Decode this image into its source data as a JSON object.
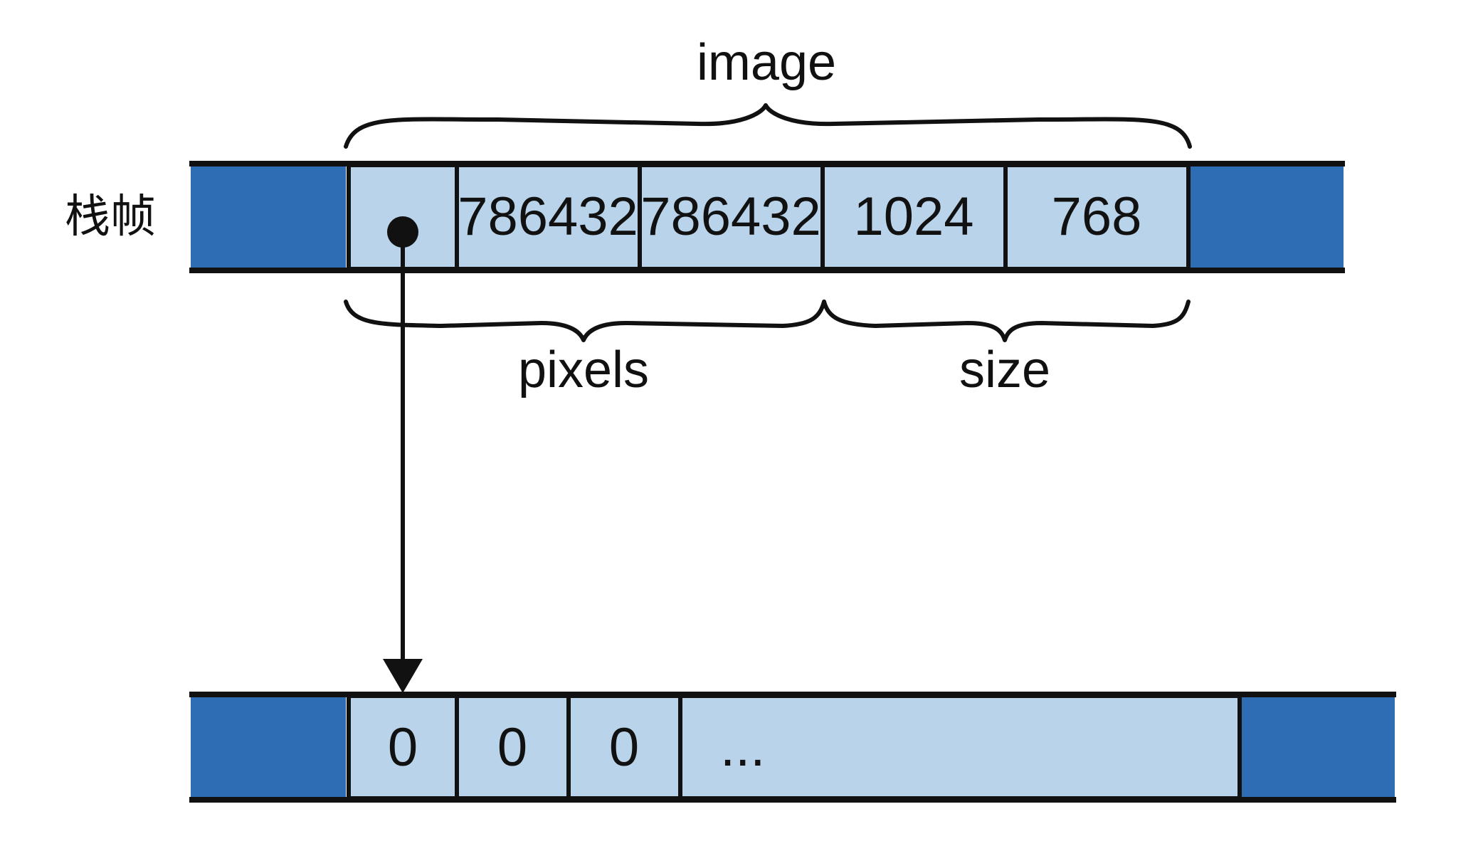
{
  "stack_frame": {
    "label": "栈帧",
    "cells": [
      "",
      "786432",
      "786432",
      "1024",
      "768"
    ],
    "braces": {
      "top": "image",
      "bottom_left": "pixels",
      "bottom_right": "size"
    }
  },
  "heap": {
    "cells": [
      "0",
      "0",
      "0",
      "..."
    ]
  }
}
